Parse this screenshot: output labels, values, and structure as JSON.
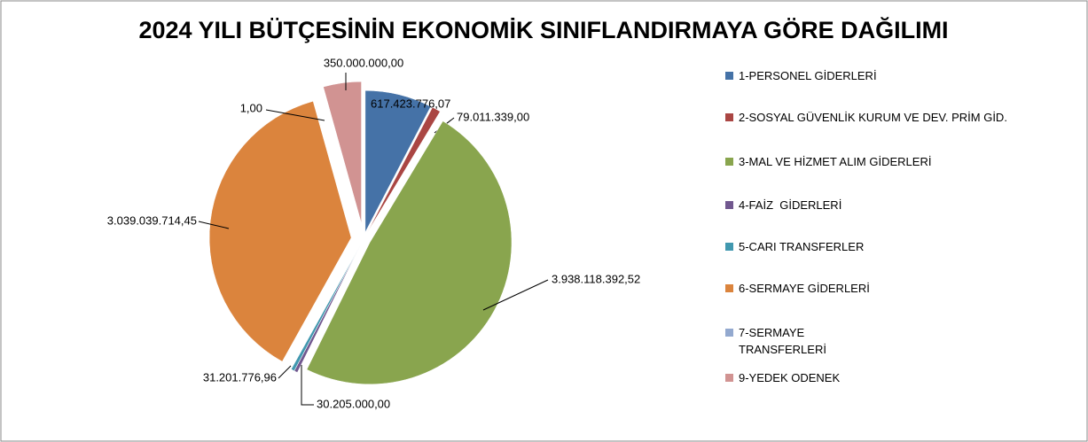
{
  "chart_data": {
    "type": "pie",
    "title": "2024 YILI BÜTÇESİNİN EKONOMİK SINIFLANDIRMAYA GÖRE DAĞILIMI",
    "categories": [
      "1-PERSONEL GİDERLERİ",
      "2-SOSYAL GÜVENLİK KURUM VE DEV. PRİM GİD.",
      "3-MAL VE HİZMET ALIM GİDERLERİ",
      "4-FAİZ  GİDERLERİ",
      "5-CARI TRANSFERLER",
      "6-SERMAYE GİDERLERİ",
      "7-SERMAYE TRANSFERLERİ",
      "9-YEDEK ODENEK"
    ],
    "values": [
      617423776.07,
      79011339,
      3938118392.52,
      30205000,
      31201776.96,
      3039039714.45,
      1,
      350000000
    ],
    "value_labels": [
      "617.423.776,07",
      "79.011.339,00",
      "3.938.118.392,52",
      "30.205.000,00",
      "31.201.776,96",
      "3.039.039.714,45",
      "1,00",
      "350.000.000,00"
    ],
    "colors": [
      "#4572a7",
      "#aa4643",
      "#89a54e",
      "#71588f",
      "#4198af",
      "#db843d",
      "#93a9cf",
      "#d19392"
    ],
    "legend": "right"
  }
}
